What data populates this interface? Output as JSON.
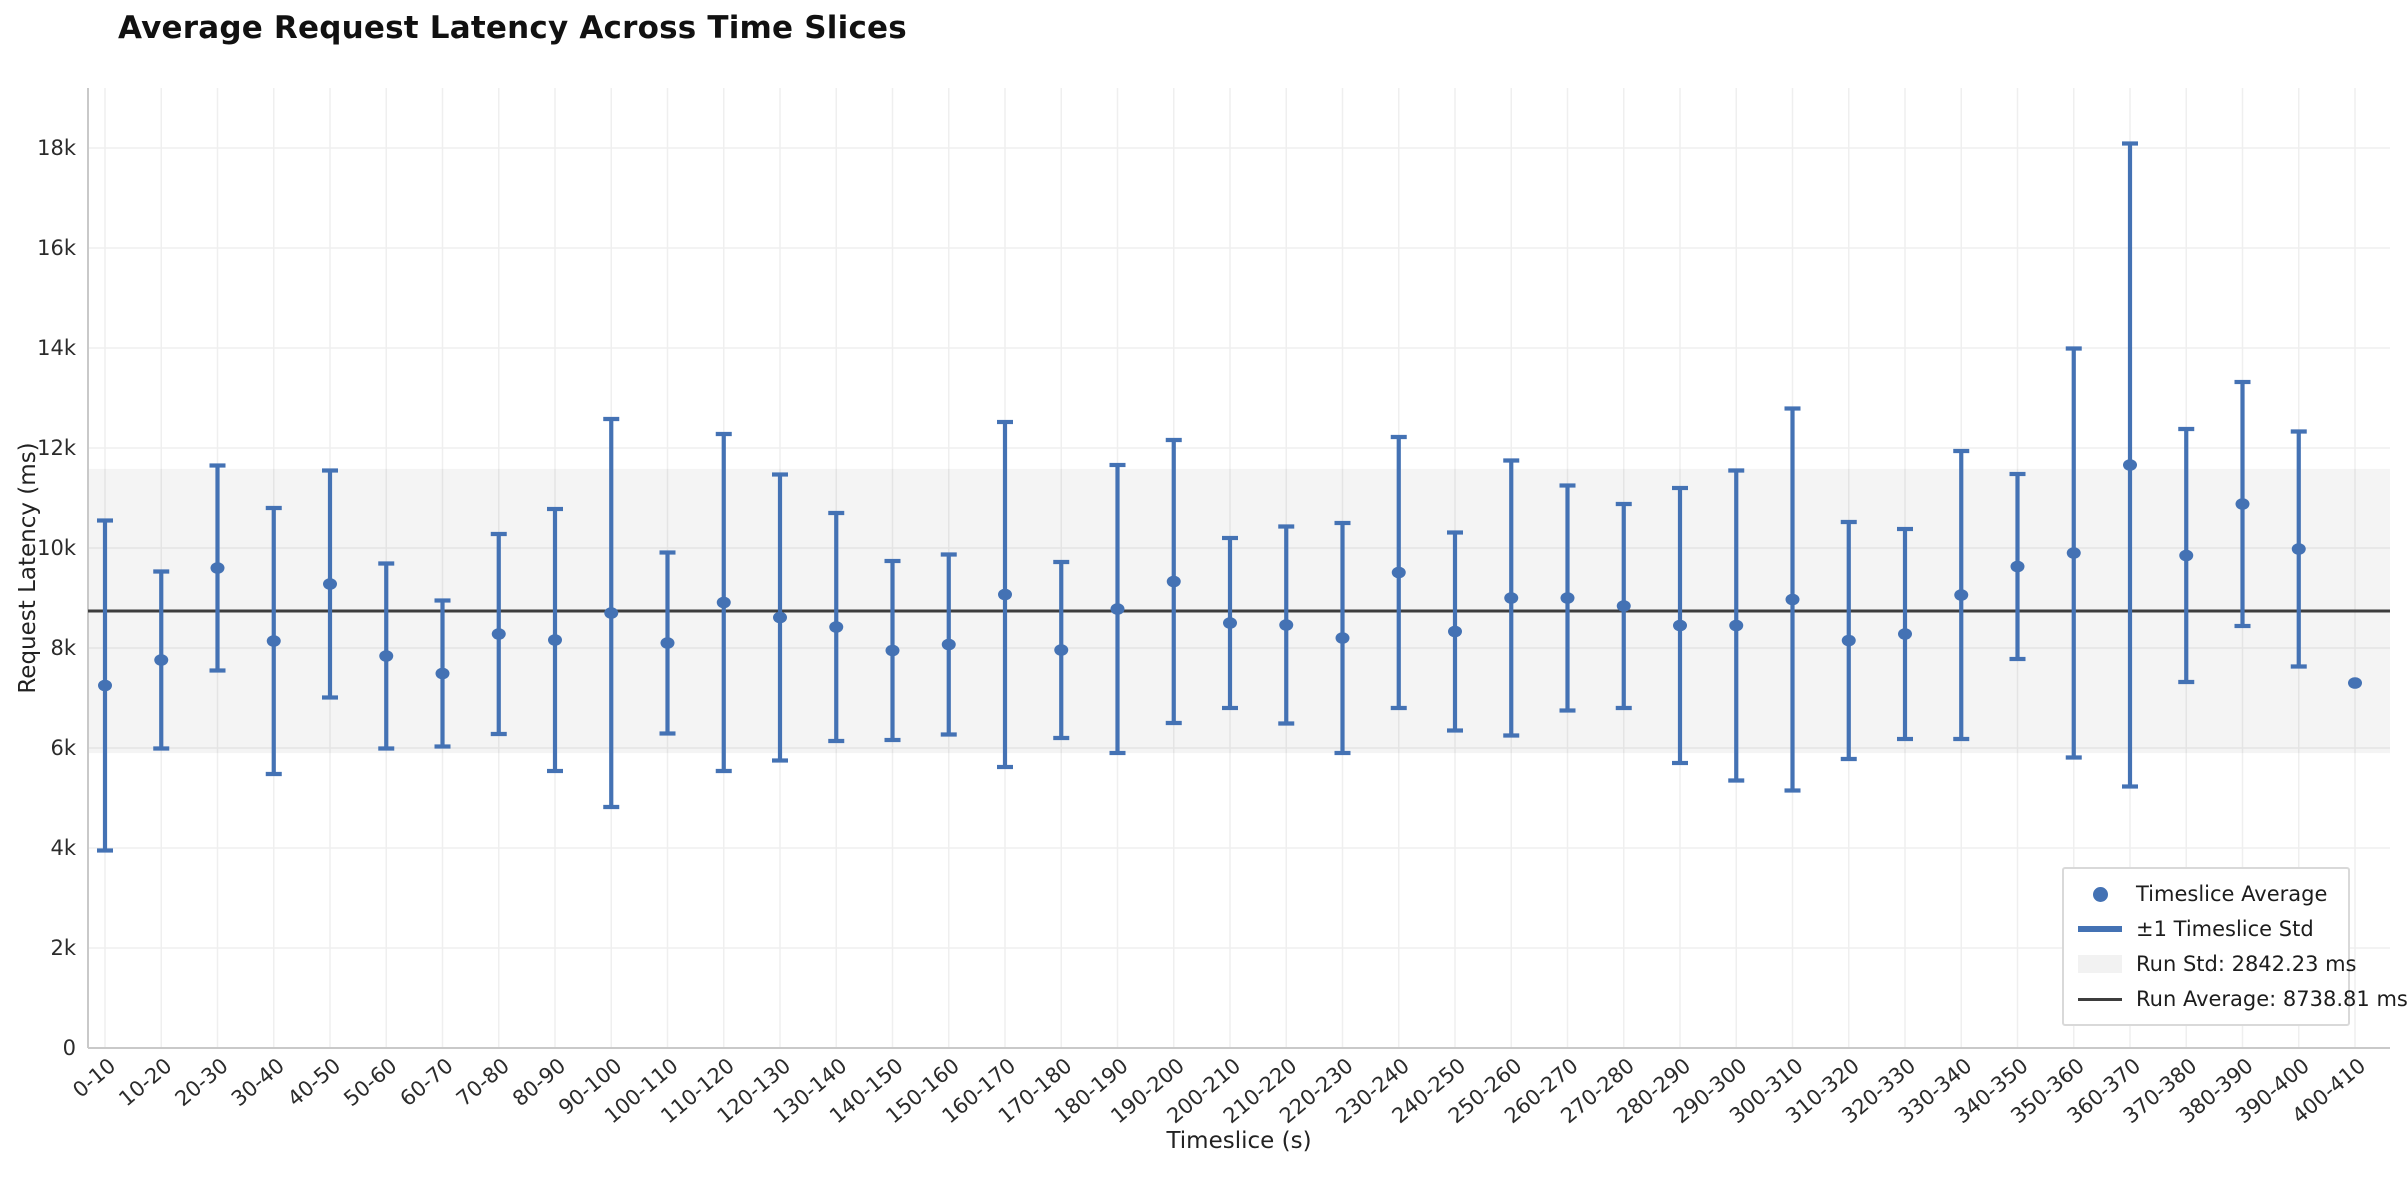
{
  "title": "Average Request Latency Across Time Slices",
  "x_axis": {
    "label": "Timeslice (s)"
  },
  "y_axis": {
    "label": "Request Latency (ms)",
    "tick_labels": [
      "0",
      "2k",
      "4k",
      "6k",
      "8k",
      "10k",
      "12k",
      "14k",
      "16k",
      "18k"
    ]
  },
  "legend": {
    "items": [
      {
        "label": "Timeslice Average",
        "marker": "dot"
      },
      {
        "label": "±1 Timeslice Std",
        "marker": "thick-line"
      },
      {
        "label": "Run Std: 2842.23 ms",
        "marker": "band-patch"
      },
      {
        "label": "Run Average: 8738.81 ms",
        "marker": "dark-line"
      }
    ]
  },
  "colors": {
    "series_blue": "#4472b4",
    "run_average_line": "#3d3d3d",
    "run_std_band": "rgba(0,0,0,0.045)",
    "grid": "#efefef",
    "spine": "#c9c9c9",
    "tick_text": "#2b2b2b",
    "title_text": "#111111",
    "legend_border": "#d9d9d9"
  },
  "chart_data": {
    "type": "scatter",
    "title": "Average Request Latency Across Time Slices",
    "xlabel": "Timeslice (s)",
    "ylabel": "Request Latency (ms)",
    "grid": true,
    "legend_position": "lower right",
    "ylim": [
      0,
      19200
    ],
    "ytick_values": [
      0,
      2000,
      4000,
      6000,
      8000,
      10000,
      12000,
      14000,
      16000,
      18000
    ],
    "ytick_labels": [
      "0",
      "2k",
      "4k",
      "6k",
      "8k",
      "10k",
      "12k",
      "14k",
      "16k",
      "18k"
    ],
    "categories": [
      "0-10",
      "10-20",
      "20-30",
      "30-40",
      "40-50",
      "50-60",
      "60-70",
      "70-80",
      "80-90",
      "90-100",
      "100-110",
      "110-120",
      "120-130",
      "130-140",
      "140-150",
      "150-160",
      "160-170",
      "170-180",
      "180-190",
      "190-200",
      "200-210",
      "210-220",
      "220-230",
      "230-240",
      "240-250",
      "250-260",
      "260-270",
      "270-280",
      "280-290",
      "290-300",
      "300-310",
      "310-320",
      "320-330",
      "330-340",
      "340-350",
      "350-360",
      "360-370",
      "370-380",
      "380-390",
      "390-400",
      "400-410"
    ],
    "series": [
      {
        "name": "Timeslice Average",
        "values": [
          7250,
          7760,
          9600,
          8140,
          9280,
          7840,
          7490,
          8280,
          8160,
          8700,
          8100,
          8910,
          8610,
          8420,
          7950,
          8070,
          9070,
          7960,
          8780,
          9330,
          8500,
          8460,
          8200,
          9510,
          8330,
          9000,
          9000,
          8840,
          8450,
          8450,
          8970,
          8150,
          8280,
          9060,
          9630,
          9900,
          11660,
          9850,
          10880,
          9980,
          7300
        ]
      },
      {
        "name": "±1 Timeslice Std",
        "values": [
          3300,
          1770,
          2050,
          2660,
          2270,
          1850,
          1460,
          2000,
          2620,
          3880,
          1810,
          3370,
          2860,
          2280,
          1790,
          1800,
          3450,
          1760,
          2880,
          2830,
          1700,
          1970,
          2300,
          2710,
          1980,
          2750,
          2250,
          2040,
          2750,
          3100,
          3820,
          2370,
          2100,
          2880,
          1850,
          4090,
          6430,
          2530,
          2440,
          2350,
          0
        ]
      }
    ],
    "run_average_ms": 8738.81,
    "run_std_ms": 2842.23
  }
}
